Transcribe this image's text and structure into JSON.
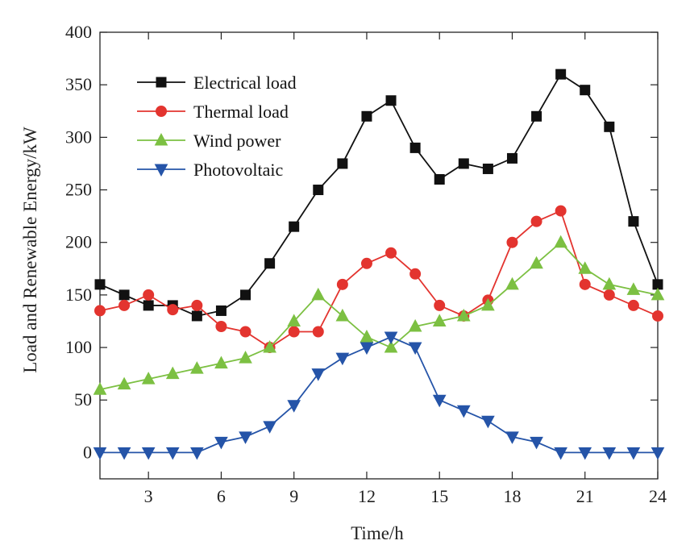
{
  "chart_data": {
    "type": "line",
    "title": "",
    "xlabel": "Time/h",
    "ylabel": "Load and Renewable Energy/kW",
    "xlim": [
      1,
      24
    ],
    "ylim": [
      -25,
      400
    ],
    "xticks": [
      3,
      6,
      9,
      12,
      15,
      18,
      21,
      24
    ],
    "yticks": [
      0,
      50,
      100,
      150,
      200,
      250,
      300,
      350,
      400
    ],
    "grid": false,
    "legend_position": "top-left",
    "x": [
      1,
      2,
      3,
      4,
      5,
      6,
      7,
      8,
      9,
      10,
      11,
      12,
      13,
      14,
      15,
      16,
      17,
      18,
      19,
      20,
      21,
      22,
      23,
      24
    ],
    "series": [
      {
        "name": "Electrical load",
        "color": "#111111",
        "marker": "square",
        "values": [
          160,
          150,
          140,
          140,
          130,
          135,
          150,
          180,
          215,
          250,
          275,
          320,
          335,
          290,
          260,
          275,
          270,
          280,
          320,
          360,
          345,
          310,
          220,
          160
        ]
      },
      {
        "name": "Thermal load",
        "color": "#e3342f",
        "marker": "circle",
        "values": [
          135,
          140,
          150,
          136,
          140,
          120,
          115,
          100,
          115,
          115,
          160,
          180,
          190,
          170,
          140,
          130,
          145,
          200,
          220,
          230,
          160,
          150,
          140,
          130
        ]
      },
      {
        "name": "Wind power",
        "color": "#7cc042",
        "marker": "triangle-up",
        "values": [
          60,
          65,
          70,
          75,
          80,
          85,
          90,
          100,
          125,
          150,
          130,
          110,
          100,
          120,
          125,
          130,
          140,
          160,
          180,
          200,
          175,
          160,
          155,
          150
        ]
      },
      {
        "name": "Photovoltaic",
        "color": "#2554a8",
        "marker": "triangle-down",
        "values": [
          0,
          0,
          0,
          0,
          0,
          10,
          15,
          25,
          45,
          75,
          90,
          100,
          110,
          100,
          50,
          40,
          30,
          15,
          10,
          0,
          0,
          0,
          0,
          0
        ]
      }
    ]
  }
}
